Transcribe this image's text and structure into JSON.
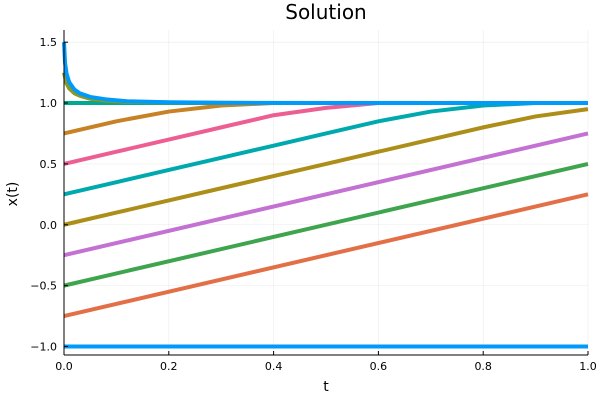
{
  "chart_data": {
    "type": "line",
    "title": "Solution",
    "xlabel": "t",
    "ylabel": "x(t)",
    "xlim": [
      0.0,
      1.0
    ],
    "ylim": [
      -1.07,
      1.6
    ],
    "xticks": [
      0.0,
      0.2,
      0.4,
      0.6,
      0.8,
      1.0
    ],
    "xtick_labels": [
      "0.0",
      "0.2",
      "0.4",
      "0.6",
      "0.8",
      "1.0"
    ],
    "yticks": [
      -1.0,
      -0.5,
      0.0,
      0.5,
      1.0,
      1.5
    ],
    "ytick_labels": [
      "−1.0",
      "−0.5",
      "0.0",
      "0.5",
      "1.0",
      "1.5"
    ],
    "grid": true,
    "legend": "none",
    "colors": [
      "#009AFA",
      "#E36F47",
      "#3EA44E",
      "#C371D2",
      "#AC8E18",
      "#00A9AD",
      "#ED5E93",
      "#C68225",
      "#00A98D",
      "#8E971E"
    ],
    "series": [
      {
        "x": [
          0,
          1
        ],
        "values": [
          -1.0,
          -1.0
        ]
      },
      {
        "x": [
          0,
          1
        ],
        "values": [
          -0.75,
          0.25
        ]
      },
      {
        "x": [
          0,
          1
        ],
        "values": [
          -0.5,
          0.5
        ]
      },
      {
        "x": [
          0,
          1
        ],
        "values": [
          -0.25,
          0.75
        ]
      },
      {
        "x": [
          0,
          0.1,
          0.2,
          0.3,
          0.4,
          0.5,
          0.6,
          0.7,
          0.8,
          0.9,
          1.0
        ],
        "values": [
          0.0,
          0.1,
          0.2,
          0.3,
          0.4,
          0.5,
          0.6,
          0.7,
          0.8,
          0.89,
          0.95
        ]
      },
      {
        "x": [
          0,
          0.1,
          0.2,
          0.3,
          0.4,
          0.5,
          0.6,
          0.7,
          0.8,
          0.9,
          1.0
        ],
        "values": [
          0.25,
          0.35,
          0.45,
          0.55,
          0.65,
          0.75,
          0.85,
          0.93,
          0.98,
          1.0,
          1.0
        ]
      },
      {
        "x": [
          0,
          0.1,
          0.2,
          0.3,
          0.4,
          0.5,
          0.6,
          0.7,
          0.8,
          0.9,
          1.0
        ],
        "values": [
          0.5,
          0.6,
          0.7,
          0.8,
          0.9,
          0.96,
          1.0,
          1.0,
          1.0,
          1.0,
          1.0
        ]
      },
      {
        "x": [
          0,
          0.1,
          0.2,
          0.3,
          0.4,
          0.5,
          0.6,
          0.7,
          0.8,
          0.9,
          1.0
        ],
        "values": [
          0.75,
          0.85,
          0.93,
          0.98,
          1.0,
          1.0,
          1.0,
          1.0,
          1.0,
          1.0,
          1.0
        ]
      },
      {
        "x": [
          0,
          1
        ],
        "values": [
          1.0,
          1.0
        ]
      },
      {
        "x": [
          0,
          0.005,
          0.01,
          0.02,
          0.03,
          0.05,
          0.08,
          0.12,
          0.2,
          0.3,
          0.5,
          1.0
        ],
        "values": [
          1.25,
          1.16,
          1.12,
          1.08,
          1.06,
          1.035,
          1.02,
          1.01,
          1.004,
          1.001,
          1.0,
          1.0
        ]
      },
      {
        "x": [
          0,
          0.002,
          0.005,
          0.01,
          0.02,
          0.03,
          0.05,
          0.08,
          0.12,
          0.2,
          0.3,
          0.5,
          1.0
        ],
        "values": [
          1.5,
          1.33,
          1.24,
          1.17,
          1.11,
          1.08,
          1.05,
          1.03,
          1.015,
          1.006,
          1.002,
          1.0,
          1.0
        ]
      }
    ]
  }
}
